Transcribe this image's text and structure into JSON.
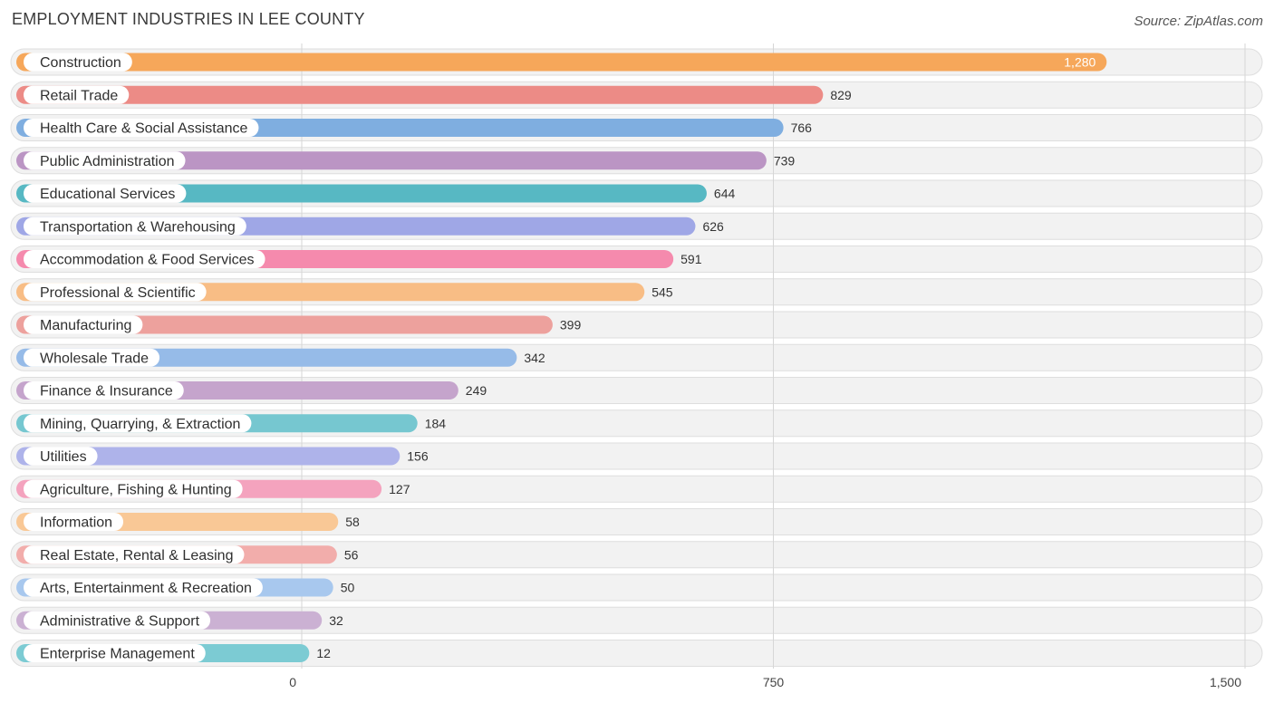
{
  "title": "EMPLOYMENT INDUSTRIES IN LEE COUNTY",
  "source": "Source: ZipAtlas.com",
  "chart_data": {
    "type": "bar",
    "orientation": "horizontal",
    "title": "EMPLOYMENT INDUSTRIES IN LEE COUNTY",
    "xlabel": "",
    "ylabel": "",
    "xlim": [
      0,
      1500
    ],
    "ticks": [
      0,
      750,
      1500
    ],
    "tick_labels": [
      "0",
      "750",
      "1,500"
    ],
    "grid": true,
    "categories": [
      "Construction",
      "Retail Trade",
      "Health Care & Social Assistance",
      "Public Administration",
      "Educational Services",
      "Transportation & Warehousing",
      "Accommodation & Food Services",
      "Professional & Scientific",
      "Manufacturing",
      "Wholesale Trade",
      "Finance & Insurance",
      "Mining, Quarrying, & Extraction",
      "Utilities",
      "Agriculture, Fishing & Hunting",
      "Information",
      "Real Estate, Rental & Leasing",
      "Arts, Entertainment & Recreation",
      "Administrative & Support",
      "Enterprise Management"
    ],
    "values": [
      1280,
      829,
      766,
      739,
      644,
      626,
      591,
      545,
      399,
      342,
      249,
      184,
      156,
      127,
      58,
      56,
      50,
      32,
      12
    ],
    "value_labels": [
      "1,280",
      "829",
      "766",
      "739",
      "644",
      "626",
      "591",
      "545",
      "399",
      "342",
      "249",
      "184",
      "156",
      "127",
      "58",
      "56",
      "50",
      "32",
      "12"
    ],
    "colors": [
      "#f6a75a",
      "#ec8b86",
      "#7faee0",
      "#bb95c4",
      "#57b8c3",
      "#9fa7e6",
      "#f58aad",
      "#f8bd85",
      "#eda19d",
      "#96bbe8",
      "#c5a4cc",
      "#76c7d0",
      "#aeb3ea",
      "#f4a3be",
      "#f9c896",
      "#f2adab",
      "#a8c8ee",
      "#cbb1d3",
      "#7ccbd3"
    ]
  }
}
